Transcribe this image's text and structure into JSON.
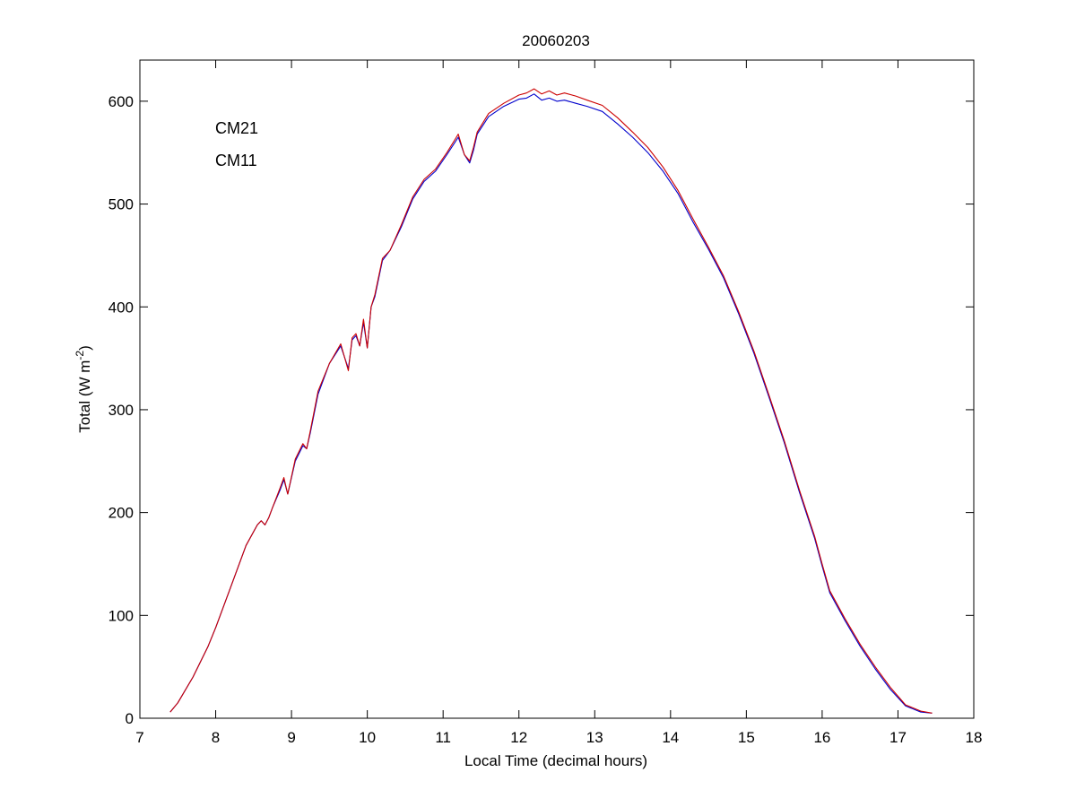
{
  "chart_data": {
    "type": "line",
    "title": "20060203",
    "xlabel": "Local Time (decimal hours)",
    "ylabel": "Total (W m^-2)",
    "ylabel_parts": {
      "main": "Total (W m",
      "sup": "-2",
      "end": ")"
    },
    "xlim": [
      7,
      18
    ],
    "ylim": [
      0,
      640
    ],
    "xticks": [
      7,
      8,
      9,
      10,
      11,
      12,
      13,
      14,
      15,
      16,
      17,
      18
    ],
    "yticks": [
      0,
      100,
      200,
      300,
      400,
      500,
      600
    ],
    "grid": false,
    "legend_position": "top-left",
    "series": [
      {
        "name": "CM21",
        "color": "#0000cc",
        "x": [
          7.4,
          7.5,
          7.7,
          7.9,
          8.0,
          8.2,
          8.4,
          8.55,
          8.6,
          8.65,
          8.7,
          8.75,
          8.85,
          8.9,
          8.95,
          9.05,
          9.15,
          9.2,
          9.25,
          9.35,
          9.5,
          9.65,
          9.75,
          9.8,
          9.85,
          9.9,
          9.95,
          10.0,
          10.05,
          10.1,
          10.2,
          10.3,
          10.45,
          10.6,
          10.75,
          10.9,
          11.05,
          11.2,
          11.28,
          11.35,
          11.4,
          11.45,
          11.6,
          11.8,
          12.0,
          12.1,
          12.2,
          12.3,
          12.4,
          12.5,
          12.6,
          12.75,
          12.9,
          13.1,
          13.3,
          13.5,
          13.7,
          13.9,
          14.1,
          14.3,
          14.5,
          14.7,
          14.9,
          15.1,
          15.3,
          15.5,
          15.7,
          15.9,
          16.0,
          16.1,
          16.3,
          16.5,
          16.7,
          16.9,
          17.1,
          17.3,
          17.45
        ],
        "values": [
          6,
          15,
          40,
          70,
          88,
          128,
          168,
          188,
          192,
          188,
          195,
          205,
          222,
          232,
          218,
          250,
          265,
          262,
          278,
          315,
          345,
          362,
          340,
          368,
          372,
          362,
          385,
          360,
          400,
          410,
          445,
          455,
          478,
          505,
          522,
          532,
          548,
          565,
          548,
          540,
          552,
          568,
          585,
          595,
          602,
          603,
          607,
          601,
          603,
          600,
          601,
          598,
          595,
          590,
          578,
          565,
          550,
          532,
          510,
          482,
          456,
          428,
          393,
          355,
          312,
          268,
          220,
          175,
          148,
          122,
          95,
          70,
          48,
          28,
          12,
          6,
          5
        ]
      },
      {
        "name": "CM11",
        "color": "#cc0000",
        "x": [
          7.4,
          7.5,
          7.7,
          7.9,
          8.0,
          8.2,
          8.4,
          8.55,
          8.6,
          8.65,
          8.7,
          8.75,
          8.85,
          8.9,
          8.95,
          9.05,
          9.15,
          9.2,
          9.25,
          9.35,
          9.5,
          9.65,
          9.75,
          9.8,
          9.85,
          9.9,
          9.95,
          10.0,
          10.05,
          10.1,
          10.2,
          10.3,
          10.45,
          10.6,
          10.75,
          10.9,
          11.05,
          11.2,
          11.28,
          11.35,
          11.4,
          11.45,
          11.6,
          11.8,
          12.0,
          12.1,
          12.2,
          12.3,
          12.4,
          12.5,
          12.6,
          12.75,
          12.9,
          13.1,
          13.3,
          13.5,
          13.7,
          13.9,
          14.1,
          14.3,
          14.5,
          14.7,
          14.9,
          15.1,
          15.3,
          15.5,
          15.7,
          15.9,
          16.0,
          16.1,
          16.3,
          16.5,
          16.7,
          16.9,
          17.1,
          17.3,
          17.45
        ],
        "values": [
          6,
          15,
          40,
          70,
          88,
          128,
          168,
          188,
          192,
          188,
          195,
          205,
          224,
          234,
          218,
          252,
          267,
          262,
          280,
          318,
          345,
          364,
          338,
          370,
          374,
          362,
          388,
          360,
          400,
          412,
          447,
          455,
          480,
          507,
          524,
          534,
          550,
          568,
          548,
          542,
          555,
          570,
          588,
          598,
          606,
          608,
          612,
          607,
          610,
          606,
          608,
          605,
          601,
          596,
          584,
          570,
          555,
          536,
          513,
          485,
          458,
          430,
          395,
          357,
          314,
          270,
          222,
          177,
          150,
          124,
          97,
          72,
          50,
          30,
          13,
          7,
          5
        ]
      }
    ]
  }
}
